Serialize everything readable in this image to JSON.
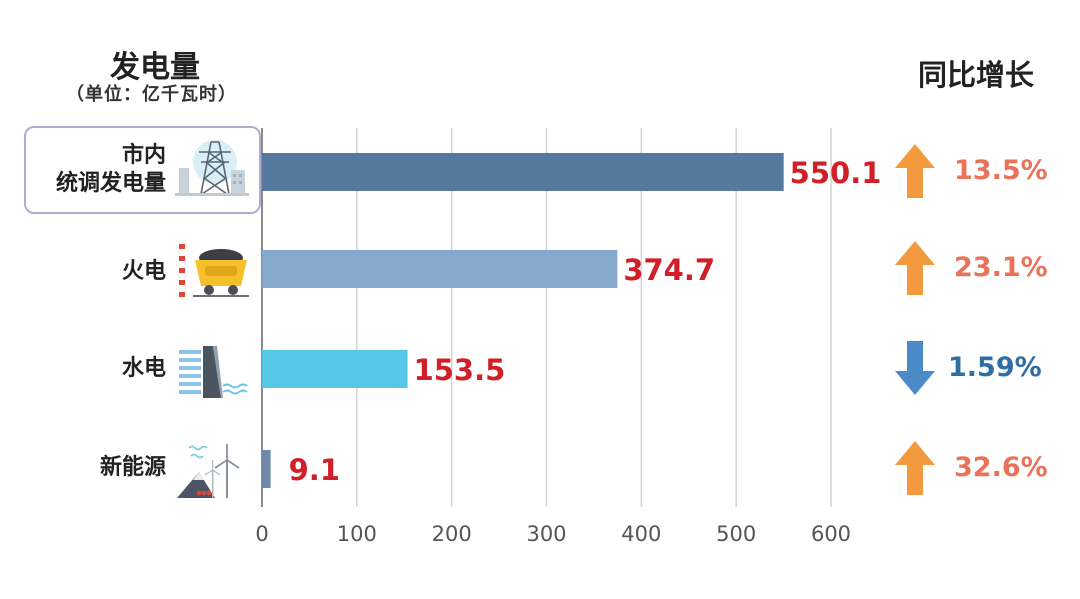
{
  "title": "发电量",
  "unit": "（单位：亿千瓦时）",
  "growth_title": "同比增长",
  "colors": {
    "value_text": "#d01f26",
    "growth_up": "#e8735a",
    "growth_down": "#2f6ea5",
    "arrow_up": "#f39a3f",
    "arrow_down": "#4b8cc8"
  },
  "categories": [
    {
      "label_lines": [
        "市内",
        "统调发电量"
      ],
      "icon": "power-tower-icon",
      "growth": "13.5%",
      "direction": "up"
    },
    {
      "label_lines": [
        "火电"
      ],
      "icon": "coal-cart-icon",
      "growth": "23.1%",
      "direction": "up"
    },
    {
      "label_lines": [
        "水电"
      ],
      "icon": "dam-icon",
      "growth": "1.59%",
      "direction": "down"
    },
    {
      "label_lines": [
        "新能源"
      ],
      "icon": "wind-turbine-icon",
      "growth": "32.6%",
      "direction": "up"
    }
  ],
  "chart_data": {
    "type": "bar",
    "orientation": "horizontal",
    "categories": [
      "市内统调发电量",
      "火电",
      "水电",
      "新能源"
    ],
    "values": [
      550.1,
      374.7,
      153.5,
      9.1
    ],
    "value_labels": [
      "550.1",
      "374.7",
      "153.5",
      "9.1"
    ],
    "bar_colors": [
      "#5679a0",
      "#86a8cd",
      "#55c8e8",
      "#6f87a8"
    ],
    "xlim": [
      0,
      600
    ],
    "xticks": [
      "0",
      "100",
      "200",
      "300",
      "400",
      "500",
      "600"
    ],
    "grid": true
  }
}
